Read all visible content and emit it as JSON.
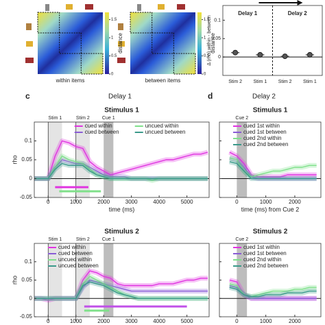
{
  "labels": {
    "c": "c",
    "d": "d",
    "delay1": "Delay 1",
    "delay2": "Delay 2"
  },
  "chart_data": [
    {
      "type": "heatmap",
      "xlabel": "within items",
      "colorbar_label": "distance",
      "ylim": [
        0,
        1.7
      ],
      "yticks": [
        0,
        0.5,
        1,
        1.5
      ]
    },
    {
      "type": "heatmap",
      "xlabel": "between items",
      "colorbar_label": "distance",
      "ylim": [
        0,
        1.7
      ],
      "yticks": [
        0,
        0.5,
        1,
        1.5
      ]
    },
    {
      "type": "strip",
      "ylabel": "Δ (rho) within - between",
      "categories": [
        "Stim 2",
        "Stim 1",
        "Stim 2",
        "Stim 1"
      ],
      "values": [
        0.012,
        0.006,
        0.002,
        0.006
      ],
      "color": "#555555",
      "ylim": [
        -0.05,
        0.14
      ],
      "yticks": [
        0,
        0.05,
        0.1
      ],
      "annotations": [
        "Delay 1",
        "Delay 2"
      ]
    },
    {
      "type": "line",
      "title": "Stimulus 1",
      "xlabel": "time (ms)",
      "ylabel": "rho",
      "x": [
        -500,
        -250,
        0,
        250,
        500,
        750,
        1000,
        1250,
        1500,
        1750,
        2000,
        2250,
        2500,
        2750,
        3000,
        3250,
        3500,
        3750,
        4000,
        4250,
        4500,
        4750,
        5000,
        5250,
        5500,
        5750
      ],
      "series": [
        {
          "name": "cued within",
          "color": "#e033e0",
          "values": [
            0,
            0,
            0,
            0.06,
            0.1,
            0.095,
            0.085,
            0.08,
            0.045,
            0.03,
            0.02,
            0.01,
            0.015,
            0.02,
            0.025,
            0.03,
            0.035,
            0.04,
            0.045,
            0.05,
            0.05,
            0.055,
            0.06,
            0.065,
            0.065,
            0.07
          ]
        },
        {
          "name": "cued between",
          "color": "#8a5cd6",
          "values": [
            0,
            0,
            0,
            0.03,
            0.05,
            0.045,
            0.04,
            0.04,
            0.03,
            0.02,
            0.01,
            0.005,
            0.005,
            0.005,
            0,
            0,
            0,
            0,
            0,
            0,
            0,
            0,
            0,
            0,
            0,
            0
          ]
        },
        {
          "name": "uncued within",
          "color": "#7fe08a",
          "values": [
            0,
            0,
            0,
            0.03,
            0.06,
            0.05,
            0.045,
            0.04,
            0.025,
            0.01,
            0.005,
            0,
            0,
            0,
            0,
            0,
            0,
            -0.005,
            0,
            0,
            0,
            0,
            0,
            0,
            0,
            0
          ]
        },
        {
          "name": "uncued between",
          "color": "#3a9a8a",
          "values": [
            0,
            0,
            0,
            0.025,
            0.04,
            0.035,
            0.035,
            0.035,
            0.02,
            0.01,
            0.005,
            0,
            0,
            0,
            0,
            0,
            0,
            0,
            0,
            0,
            0,
            0,
            0,
            0,
            0,
            0
          ]
        }
      ],
      "regions": [
        {
          "label": "Stim 1",
          "range": [
            0,
            500
          ]
        },
        {
          "label": "Stim 2",
          "range": [
            1000,
            1500
          ]
        },
        {
          "label": "Cue 1",
          "range": [
            2000,
            2350
          ]
        }
      ],
      "vlines": [
        0,
        1000
      ],
      "sig_bars": [
        {
          "color": "#e033e0",
          "range": [
            250,
            1450
          ]
        },
        {
          "color": "#7fe08a",
          "range": [
            400,
            1900
          ]
        }
      ],
      "xlim": [
        -500,
        5800
      ],
      "xticks": [
        0,
        1000,
        2000,
        3000,
        4000,
        5000
      ],
      "ylim": [
        -0.05,
        0.15
      ],
      "yticks": [
        -0.05,
        0,
        0.05,
        0.1
      ],
      "legend": "top-split"
    },
    {
      "type": "line",
      "title": "Stimulus 2",
      "ylabel": "rho",
      "x": [
        -500,
        -250,
        0,
        250,
        500,
        750,
        1000,
        1250,
        1500,
        1750,
        2000,
        2250,
        2500,
        2750,
        3000,
        3250,
        3500,
        3750,
        4000,
        4250,
        4500,
        4750,
        5000,
        5250,
        5500,
        5750
      ],
      "series": [
        {
          "name": "cued within",
          "color": "#e033e0",
          "values": [
            0,
            0,
            -0.005,
            0,
            0,
            0,
            0,
            0.05,
            0.075,
            0.07,
            0.06,
            0.055,
            0.04,
            0.035,
            0.035,
            0.035,
            0.035,
            0.035,
            0.04,
            0.04,
            0.04,
            0.045,
            0.05,
            0.05,
            0.055,
            0.055
          ]
        },
        {
          "name": "cued between",
          "color": "#8a5cd6",
          "values": [
            0,
            0,
            0,
            0,
            0,
            0,
            0,
            0.03,
            0.05,
            0.045,
            0.04,
            0.035,
            0.03,
            0.025,
            0.02,
            0.02,
            0.02,
            0.02,
            0.02,
            0.02,
            0.02,
            0.02,
            0.02,
            0.02,
            0.02,
            0.02
          ]
        },
        {
          "name": "uncued within",
          "color": "#7fe08a",
          "values": [
            0,
            0,
            0,
            0,
            0,
            0,
            0,
            0.04,
            0.06,
            0.05,
            0.04,
            0.03,
            0.02,
            0.01,
            0.005,
            0,
            0,
            0,
            0,
            0,
            0,
            0,
            0,
            0,
            0,
            0
          ]
        },
        {
          "name": "uncued between",
          "color": "#3a9a8a",
          "values": [
            0,
            0,
            0,
            0,
            0,
            0,
            0,
            0.035,
            0.045,
            0.04,
            0.035,
            0.025,
            0.015,
            0.01,
            0.005,
            0,
            0,
            0,
            0,
            0,
            0,
            0,
            0,
            0,
            0,
            0
          ]
        }
      ],
      "regions": [
        {
          "label": "Stim 1",
          "range": [
            0,
            500
          ]
        },
        {
          "label": "Stim 2",
          "range": [
            1000,
            1500
          ]
        },
        {
          "label": "Cue 1",
          "range": [
            2000,
            2350
          ]
        }
      ],
      "vlines": [
        0,
        1000
      ],
      "sig_bars": [
        {
          "color": "#c050e8",
          "range": [
            1300,
            5000
          ]
        },
        {
          "color": "#7fe08a",
          "range": [
            1300,
            2200
          ]
        }
      ],
      "xlim": [
        -500,
        5800
      ],
      "xticks": [
        0,
        1000,
        2000,
        3000,
        4000,
        5000
      ],
      "ylim": [
        -0.05,
        0.15
      ],
      "yticks": [
        -0.05,
        0,
        0.05,
        0.1
      ],
      "legend": "top-right"
    },
    {
      "type": "line",
      "title": "Stimulus 1",
      "xlabel": "time (ms) from Cue 2",
      "x": [
        -250,
        0,
        250,
        500,
        750,
        1000,
        1250,
        1500,
        1750,
        2000,
        2250,
        2500,
        2750
      ],
      "series": [
        {
          "name": "cued 1st within",
          "color": "#e033e0",
          "values": [
            0.07,
            0.06,
            0.04,
            0.01,
            0.005,
            0.005,
            0.005,
            0.005,
            0.01,
            0.01,
            0.01,
            0.01,
            0.01
          ]
        },
        {
          "name": "cued 1st between",
          "color": "#8a5cd6",
          "values": [
            0.055,
            0.05,
            0.03,
            0.005,
            0,
            0,
            0,
            0,
            0,
            0,
            0,
            0,
            0
          ]
        },
        {
          "name": "cued 2nd within",
          "color": "#7fe08a",
          "values": [
            0.055,
            0.05,
            0.02,
            0.005,
            0.01,
            0.015,
            0.02,
            0.02,
            0.025,
            0.03,
            0.03,
            0.035,
            0.035
          ]
        },
        {
          "name": "cued 2nd between",
          "color": "#3a9a8a",
          "values": [
            0.045,
            0.04,
            0.02,
            0,
            0,
            0,
            0,
            0,
            0,
            0,
            0,
            0,
            0
          ]
        }
      ],
      "regions": [
        {
          "label": "Cue 2",
          "range": [
            0,
            350
          ]
        }
      ],
      "xlim": [
        -600,
        2900
      ],
      "xticks": [
        0,
        1000,
        2000
      ],
      "ylim": [
        -0.05,
        0.15
      ],
      "yticks": [
        -0.05,
        0,
        0.05,
        0.1
      ],
      "legend": "top-right"
    },
    {
      "type": "line",
      "title": "Stimulus 2",
      "x": [
        -250,
        0,
        250,
        500,
        750,
        1000,
        1250,
        1500,
        1750,
        2000,
        2250,
        2500,
        2750
      ],
      "series": [
        {
          "name": "cued 1st within",
          "color": "#e033e0",
          "values": [
            0.05,
            0.045,
            0.01,
            0,
            0,
            0,
            0,
            0,
            0,
            0,
            0,
            0,
            0
          ]
        },
        {
          "name": "cued 1st between",
          "color": "#8a5cd6",
          "values": [
            0.035,
            0.03,
            0.01,
            0,
            0,
            0,
            0,
            0,
            0,
            0,
            0,
            0,
            0
          ]
        },
        {
          "name": "cued 2nd within",
          "color": "#7fe08a",
          "values": [
            0.04,
            0.035,
            0.01,
            0.005,
            0.01,
            0.015,
            0.02,
            0.02,
            0.02,
            0.025,
            0.025,
            0.03,
            0.03
          ]
        },
        {
          "name": "cued 2nd between",
          "color": "#3a9a8a",
          "values": [
            0.03,
            0.025,
            0.01,
            0.005,
            0.005,
            0.01,
            0.01,
            0.01,
            0.015,
            0.015,
            0.015,
            0.02,
            0.02
          ]
        }
      ],
      "regions": [
        {
          "label": "Cue 2",
          "range": [
            0,
            350
          ]
        }
      ],
      "xlim": [
        -600,
        2900
      ],
      "xticks": [
        0,
        1000,
        2000
      ],
      "ylim": [
        -0.05,
        0.15
      ],
      "yticks": [
        -0.05,
        0,
        0.05,
        0.1
      ],
      "legend": "top-right"
    }
  ]
}
